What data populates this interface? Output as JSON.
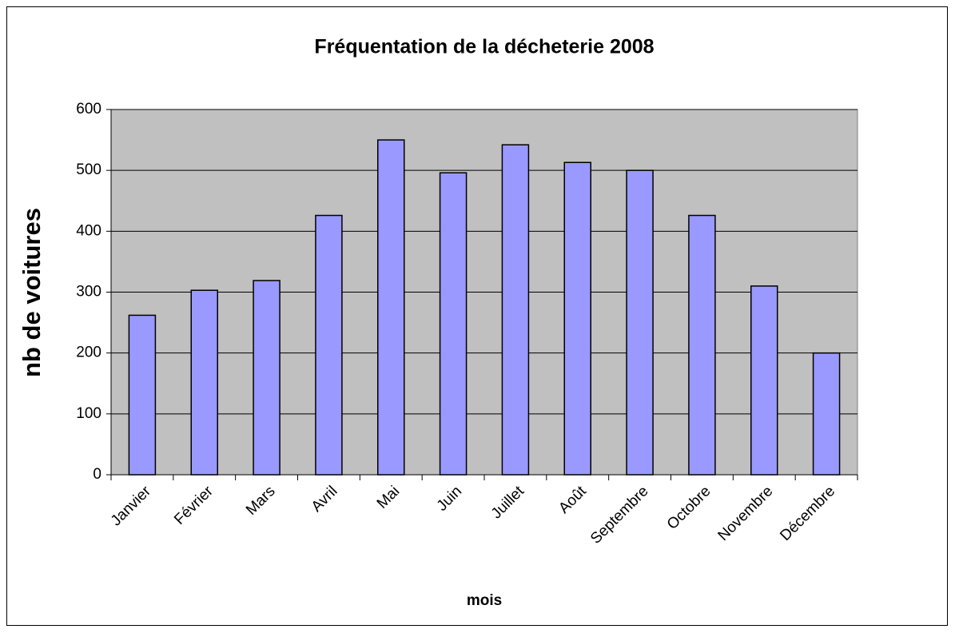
{
  "chart_data": {
    "type": "bar",
    "title": "Fréquentation de la décheterie 2008",
    "x_label": "mois",
    "y_label": "nb de voitures",
    "categories": [
      "Janvier",
      "Février",
      "Mars",
      "Avril",
      "Mai",
      "Juin",
      "Juillet",
      "Août",
      "Septembre",
      "Octobre",
      "Novembre",
      "Décembre"
    ],
    "values": [
      262,
      303,
      319,
      426,
      550,
      496,
      542,
      513,
      500,
      426,
      310,
      200
    ],
    "color": "#9999ff",
    "ylim": [
      0,
      600
    ],
    "yticks": [
      0,
      100,
      200,
      300,
      400,
      500,
      600
    ],
    "grid": true
  }
}
